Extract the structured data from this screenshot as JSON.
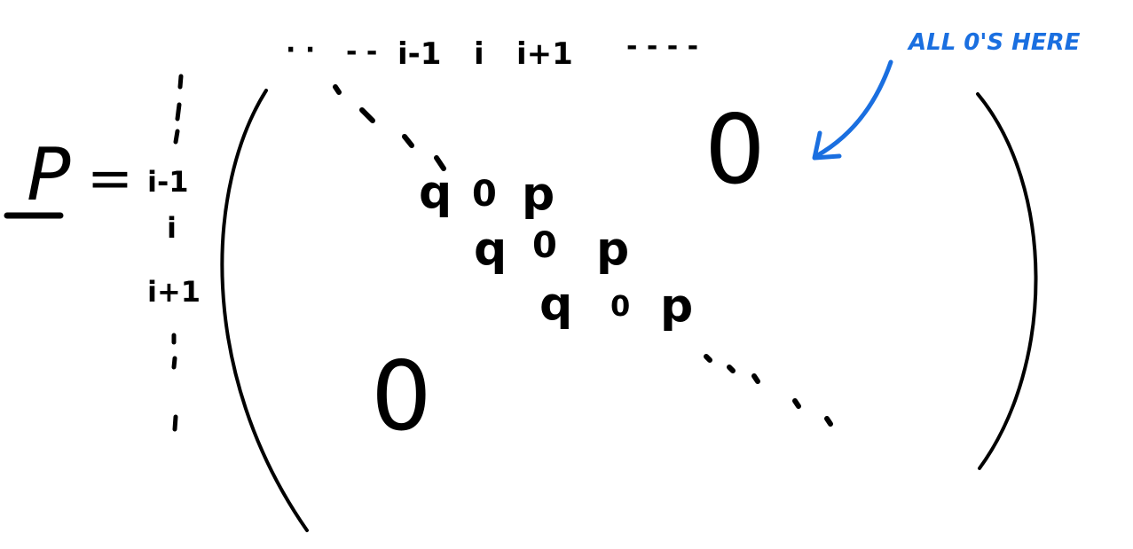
{
  "matrix_name": "P",
  "equals": "=",
  "col_header": {
    "leading_dots": "· ·",
    "prev_dashes": "- -",
    "col_prev": "i-1",
    "col_cur": "i",
    "col_next": "i+1",
    "trailing_dashes": "- - - -"
  },
  "row_labels": {
    "row_prev": "i-1",
    "row_cur": "i",
    "row_next": "i+1"
  },
  "band_rows": [
    [
      "q",
      "0",
      "p"
    ],
    [
      "q",
      "0",
      "p"
    ],
    [
      "q",
      "0",
      "p"
    ]
  ],
  "upper_zero": "0",
  "lower_zero": "0",
  "annotation": "ALL 0'S HERE",
  "colors": {
    "ink": "#000000",
    "annotation": "#1a6fe0"
  }
}
